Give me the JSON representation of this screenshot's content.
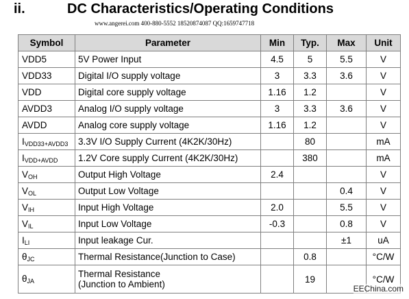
{
  "heading": {
    "number": "ii.",
    "title": "DC Characteristics/Operating Conditions"
  },
  "subline": "www.angerei.com 400-880-5552 18520874087 QQ:1659747718",
  "table": {
    "headers": [
      "Symbol",
      "Parameter",
      "Min",
      "Typ.",
      "Max",
      "Unit"
    ],
    "rows": [
      {
        "sym": "VDD5",
        "sub": "",
        "param": "5V Power Input",
        "min": "4.5",
        "typ": "5",
        "max": "5.5",
        "unit": "V"
      },
      {
        "sym": "VDD33",
        "sub": "",
        "param": "Digital I/O supply voltage",
        "min": "3",
        "typ": "3.3",
        "max": "3.6",
        "unit": "V"
      },
      {
        "sym": "VDD",
        "sub": "",
        "param": "Digital core supply voltage",
        "min": "1.16",
        "typ": "1.2",
        "max": "",
        "unit": "V"
      },
      {
        "sym": "AVDD3",
        "sub": "",
        "param": "Analog I/O supply voltage",
        "min": "3",
        "typ": "3.3",
        "max": "3.6",
        "unit": "V"
      },
      {
        "sym": "AVDD",
        "sub": "",
        "param": "Analog core supply voltage",
        "min": "1.16",
        "typ": "1.2",
        "max": "",
        "unit": "V"
      },
      {
        "sym": "I",
        "sub": "VDD33+AVDD3",
        "param": "3.3V I/O Supply Current (4K2K/30Hz)",
        "min": "",
        "typ": "80",
        "max": "",
        "unit": "mA"
      },
      {
        "sym": "I",
        "sub": "VDD+AVDD",
        "param": "1.2V Core supply Current (4K2K/30Hz)",
        "min": "",
        "typ": "380",
        "max": "",
        "unit": "mA"
      },
      {
        "sym": "V",
        "sub": "OH",
        "param": "Output High Voltage",
        "min": "2.4",
        "typ": "",
        "max": "",
        "unit": "V"
      },
      {
        "sym": "V",
        "sub": "OL",
        "param": "Output Low Voltage",
        "min": "",
        "typ": "",
        "max": "0.4",
        "unit": "V"
      },
      {
        "sym": "V",
        "sub": "IH",
        "param": "Input High Voltage",
        "min": "2.0",
        "typ": "",
        "max": "5.5",
        "unit": "V"
      },
      {
        "sym": "V",
        "sub": "IL",
        "param": "Input Low Voltage",
        "min": "-0.3",
        "typ": "",
        "max": "0.8",
        "unit": "V"
      },
      {
        "sym": "I",
        "sub": "LI",
        "param": "Input leakage Cur.",
        "min": "",
        "typ": "",
        "max": "±1",
        "unit": "uA"
      },
      {
        "sym": "θ",
        "sub": "JC",
        "param": "Thermal Resistance(Junction to Case)",
        "min": "",
        "typ": "0.8",
        "max": "",
        "unit": "°C/W"
      },
      {
        "sym": "θ",
        "sub": "JA",
        "param": "Thermal Resistance\n(Junction to Ambient)",
        "min": "",
        "typ": "19",
        "max": "",
        "unit": "°C/W"
      }
    ]
  },
  "watermark": "EEChina.com"
}
